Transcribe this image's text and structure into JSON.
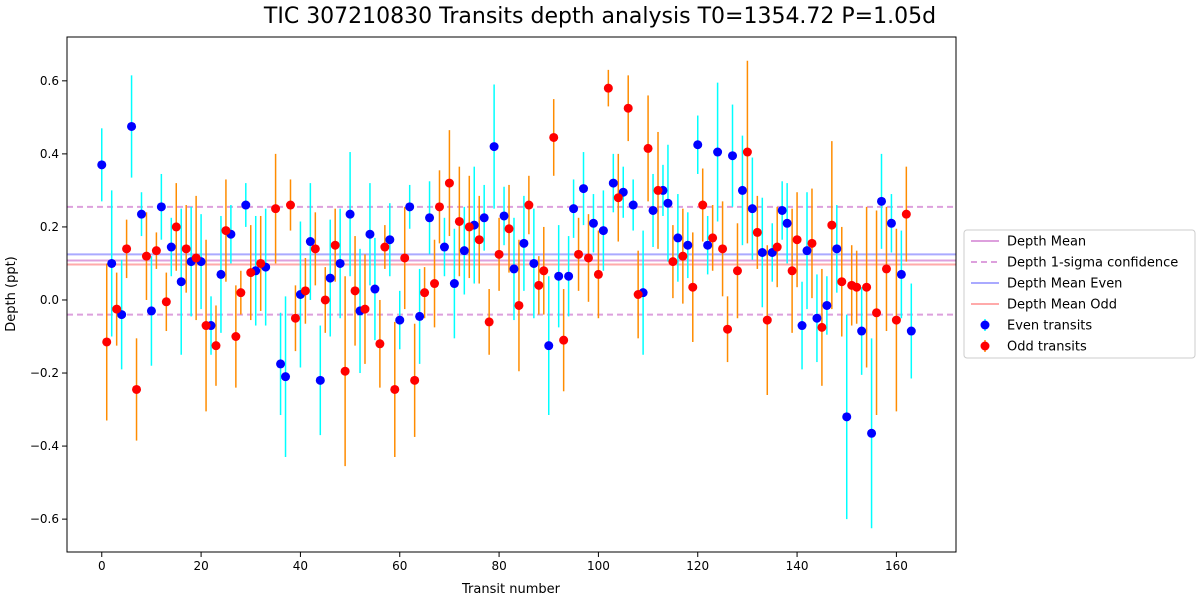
{
  "chart_data": {
    "type": "scatter",
    "title": "TIC 307210830 Transits depth analysis T0=1354.72 P=1.05d",
    "xlabel": "Transit number",
    "ylabel": "Depth (ppt)",
    "xlim": [
      -7,
      172
    ],
    "ylim": [
      -0.69,
      0.72
    ],
    "xticks": [
      0,
      20,
      40,
      60,
      80,
      100,
      120,
      140,
      160
    ],
    "yticks": [
      -0.6,
      -0.4,
      -0.2,
      0.0,
      0.2,
      0.4,
      0.6
    ],
    "xtick_labels": [
      "0",
      "20",
      "40",
      "60",
      "80",
      "100",
      "120",
      "140",
      "160"
    ],
    "ytick_labels": [
      "−0.6",
      "−0.4",
      "−0.2",
      "0.0",
      "0.2",
      "0.4",
      "0.6"
    ],
    "grid": false,
    "legend_position": "outside-right",
    "reference_lines": {
      "depth_mean": 0.108,
      "depth_sigma_upper": 0.255,
      "depth_sigma_lower": -0.04,
      "depth_mean_even": 0.125,
      "depth_mean_odd": 0.097
    },
    "series": [
      {
        "name": "Even transits",
        "marker_color": "#0000ff",
        "errorbar_color": "#00ffff",
        "points": [
          [
            0,
            0.37,
            0.1
          ],
          [
            2,
            0.1,
            0.2
          ],
          [
            4,
            -0.04,
            0.15
          ],
          [
            6,
            0.475,
            0.14
          ],
          [
            8,
            0.235,
            0.06
          ],
          [
            10,
            -0.03,
            0.15
          ],
          [
            12,
            0.255,
            0.09
          ],
          [
            14,
            0.145,
            0.08
          ],
          [
            16,
            0.05,
            0.2
          ],
          [
            18,
            0.105,
            0.15
          ],
          [
            20,
            0.105,
            0.13
          ],
          [
            22,
            -0.07,
            0.08
          ],
          [
            24,
            0.07,
            0.16
          ],
          [
            26,
            0.18,
            0.08
          ],
          [
            29,
            0.26,
            0.06
          ],
          [
            31,
            0.08,
            0.15
          ],
          [
            33,
            0.09,
            0.16
          ],
          [
            36,
            -0.175,
            0.14
          ],
          [
            37,
            -0.21,
            0.22
          ],
          [
            40,
            0.015,
            0.2
          ],
          [
            42,
            0.16,
            0.16
          ],
          [
            44,
            -0.22,
            0.15
          ],
          [
            46,
            0.06,
            0.16
          ],
          [
            48,
            0.1,
            0.15
          ],
          [
            50,
            0.235,
            0.17
          ],
          [
            52,
            -0.03,
            0.17
          ],
          [
            54,
            0.18,
            0.14
          ],
          [
            55,
            0.03,
            0.14
          ],
          [
            58,
            0.165,
            0.1
          ],
          [
            60,
            -0.055,
            0.08
          ],
          [
            62,
            0.255,
            0.06
          ],
          [
            64,
            -0.045,
            0.13
          ],
          [
            66,
            0.225,
            0.1
          ],
          [
            69,
            0.145,
            0.08
          ],
          [
            71,
            0.045,
            0.15
          ],
          [
            73,
            0.135,
            0.12
          ],
          [
            75,
            0.205,
            0.16
          ],
          [
            77,
            0.225,
            0.09
          ],
          [
            79,
            0.42,
            0.17
          ],
          [
            81,
            0.23,
            0.08
          ],
          [
            83,
            0.085,
            0.14
          ],
          [
            85,
            0.155,
            0.13
          ],
          [
            87,
            0.1,
            0.15
          ],
          [
            90,
            -0.125,
            0.19
          ],
          [
            92,
            0.065,
            0.14
          ],
          [
            94,
            0.065,
            0.11
          ],
          [
            95,
            0.25,
            0.08
          ],
          [
            97,
            0.305,
            0.1
          ],
          [
            99,
            0.21,
            0.08
          ],
          [
            101,
            0.19,
            0.11
          ],
          [
            103,
            0.32,
            0.08
          ],
          [
            105,
            0.295,
            0.07
          ],
          [
            107,
            0.26,
            0.07
          ],
          [
            109,
            0.02,
            0.17
          ],
          [
            111,
            0.245,
            0.1
          ],
          [
            113,
            0.3,
            0.07
          ],
          [
            114,
            0.265,
            0.16
          ],
          [
            116,
            0.17,
            0.12
          ],
          [
            118,
            0.15,
            0.09
          ],
          [
            120,
            0.425,
            0.08
          ],
          [
            122,
            0.15,
            0.08
          ],
          [
            124,
            0.405,
            0.19
          ],
          [
            127,
            0.395,
            0.14
          ],
          [
            129,
            0.3,
            0.15
          ],
          [
            131,
            0.25,
            0.14
          ],
          [
            133,
            0.13,
            0.15
          ],
          [
            135,
            0.13,
            0.08
          ],
          [
            137,
            0.245,
            0.08
          ],
          [
            138,
            0.21,
            0.11
          ],
          [
            141,
            -0.07,
            0.12
          ],
          [
            142,
            0.135,
            0.16
          ],
          [
            144,
            -0.05,
            0.12
          ],
          [
            146,
            -0.015,
            0.08
          ],
          [
            148,
            0.14,
            0.12
          ],
          [
            150,
            -0.32,
            0.28
          ],
          [
            153,
            -0.085,
            0.12
          ],
          [
            155,
            -0.365,
            0.26
          ],
          [
            157,
            0.27,
            0.13
          ],
          [
            159,
            0.21,
            0.08
          ],
          [
            161,
            0.07,
            0.12
          ],
          [
            163,
            -0.085,
            0.13
          ]
        ]
      },
      {
        "name": "Odd transits",
        "marker_color": "#ff0000",
        "errorbar_color": "#ff8c00",
        "points": [
          [
            1,
            -0.115,
            0.215
          ],
          [
            3,
            -0.025,
            0.1
          ],
          [
            5,
            0.14,
            0.08
          ],
          [
            7,
            -0.245,
            0.14
          ],
          [
            9,
            0.12,
            0.12
          ],
          [
            11,
            0.135,
            0.05
          ],
          [
            13,
            -0.005,
            0.08
          ],
          [
            15,
            0.2,
            0.12
          ],
          [
            17,
            0.14,
            0.12
          ],
          [
            19,
            0.115,
            0.17
          ],
          [
            21,
            -0.07,
            0.235
          ],
          [
            23,
            -0.125,
            0.11
          ],
          [
            25,
            0.19,
            0.14
          ],
          [
            27,
            -0.1,
            0.14
          ],
          [
            28,
            0.02,
            0.06
          ],
          [
            30,
            0.075,
            0.13
          ],
          [
            32,
            0.1,
            0.13
          ],
          [
            35,
            0.25,
            0.15
          ],
          [
            38,
            0.26,
            0.07
          ],
          [
            39,
            -0.05,
            0.09
          ],
          [
            41,
            0.025,
            0.09
          ],
          [
            43,
            0.14,
            0.1
          ],
          [
            45,
            0.0,
            0.09
          ],
          [
            47,
            0.15,
            0.1
          ],
          [
            49,
            -0.195,
            0.26
          ],
          [
            51,
            0.025,
            0.15
          ],
          [
            53,
            -0.025,
            0.15
          ],
          [
            56,
            -0.12,
            0.12
          ],
          [
            57,
            0.145,
            0.06
          ],
          [
            59,
            -0.245,
            0.185
          ],
          [
            61,
            0.115,
            0.14
          ],
          [
            63,
            -0.22,
            0.155
          ],
          [
            65,
            0.02,
            0.07
          ],
          [
            67,
            0.045,
            0.12
          ],
          [
            68,
            0.255,
            0.1
          ],
          [
            70,
            0.32,
            0.145
          ],
          [
            72,
            0.215,
            0.15
          ],
          [
            74,
            0.2,
            0.14
          ],
          [
            76,
            0.165,
            0.12
          ],
          [
            78,
            -0.06,
            0.09
          ],
          [
            80,
            0.125,
            0.1
          ],
          [
            82,
            0.195,
            0.12
          ],
          [
            84,
            -0.015,
            0.18
          ],
          [
            86,
            0.26,
            0.08
          ],
          [
            88,
            0.04,
            0.08
          ],
          [
            89,
            0.08,
            0.12
          ],
          [
            91,
            0.445,
            0.105
          ],
          [
            93,
            -0.11,
            0.14
          ],
          [
            96,
            0.125,
            0.1
          ],
          [
            98,
            0.115,
            0.12
          ],
          [
            100,
            0.07,
            0.12
          ],
          [
            102,
            0.58,
            0.05
          ],
          [
            104,
            0.28,
            0.12
          ],
          [
            106,
            0.525,
            0.09
          ],
          [
            108,
            0.015,
            0.12
          ],
          [
            110,
            0.415,
            0.145
          ],
          [
            112,
            0.3,
            0.16
          ],
          [
            115,
            0.105,
            0.1
          ],
          [
            117,
            0.12,
            0.13
          ],
          [
            119,
            0.035,
            0.15
          ],
          [
            121,
            0.26,
            0.1
          ],
          [
            123,
            0.17,
            0.09
          ],
          [
            125,
            0.14,
            0.13
          ],
          [
            126,
            -0.08,
            0.09
          ],
          [
            128,
            0.08,
            0.13
          ],
          [
            130,
            0.405,
            0.25
          ],
          [
            132,
            0.185,
            0.1
          ],
          [
            134,
            -0.055,
            0.205
          ],
          [
            136,
            0.145,
            0.11
          ],
          [
            139,
            0.08,
            0.17
          ],
          [
            140,
            0.165,
            0.13
          ],
          [
            143,
            0.155,
            0.15
          ],
          [
            145,
            -0.075,
            0.16
          ],
          [
            147,
            0.205,
            0.23
          ],
          [
            149,
            0.05,
            0.15
          ],
          [
            151,
            0.04,
            0.11
          ],
          [
            152,
            0.035,
            0.1
          ],
          [
            154,
            0.035,
            0.22
          ],
          [
            156,
            -0.035,
            0.28
          ],
          [
            158,
            0.085,
            0.17
          ],
          [
            160,
            -0.055,
            0.25
          ],
          [
            162,
            0.235,
            0.13
          ]
        ]
      }
    ],
    "legend": [
      {
        "label": "Depth Mean",
        "style": "solid",
        "color": "#dda0dd"
      },
      {
        "label": "Depth 1-sigma confidence",
        "style": "dashed",
        "color": "#dda0dd"
      },
      {
        "label": "Depth Mean Even",
        "style": "solid",
        "color": "#aaaaff"
      },
      {
        "label": "Depth Mean Odd",
        "style": "solid",
        "color": "#ffaaaa"
      },
      {
        "label": "Even transits",
        "style": "marker",
        "color": "#0000ff"
      },
      {
        "label": "Odd transits",
        "style": "marker",
        "color": "#ff0000"
      }
    ]
  }
}
